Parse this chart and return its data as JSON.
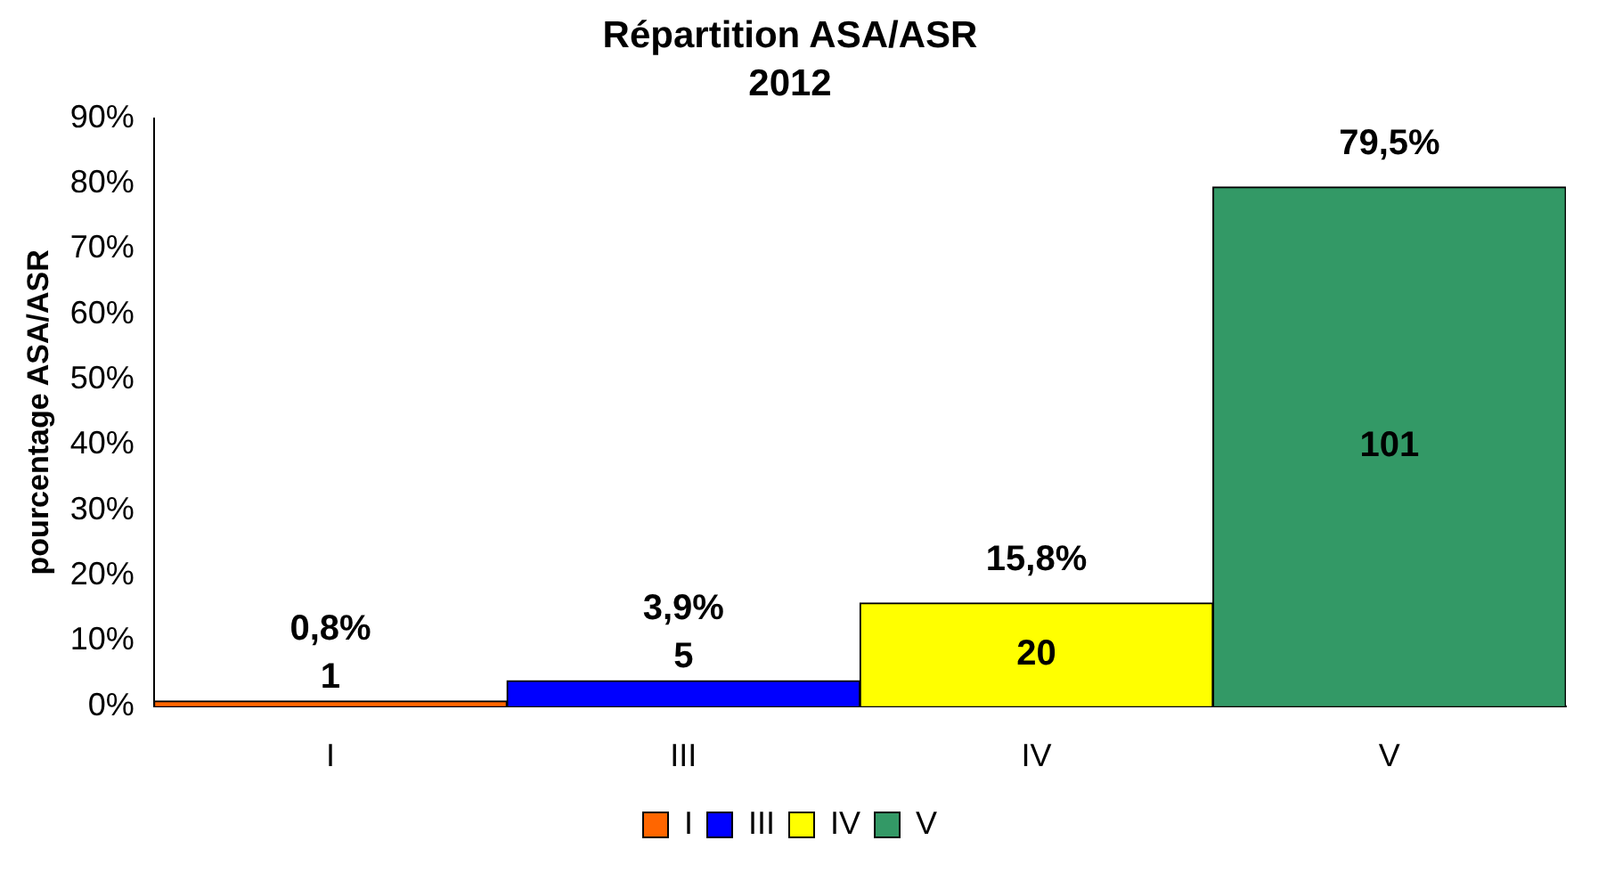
{
  "chart_data": {
    "type": "bar",
    "title": "Répartition ASA/ASR",
    "subtitle": "2012",
    "ylabel": "pourcentage ASA/ASR",
    "categories": [
      "I",
      "III",
      "IV",
      "V"
    ],
    "series": [
      {
        "name": "I",
        "color": "#ff6600",
        "values": [
          0.8,
          null,
          null,
          null
        ],
        "value_labels": [
          "0,8%",
          null,
          null,
          null
        ]
      },
      {
        "name": "III",
        "color": "#0000ff",
        "values": [
          null,
          3.9,
          null,
          null
        ],
        "value_labels": [
          null,
          "3,9%",
          null,
          null
        ]
      },
      {
        "name": "IV",
        "color": "#ffff00",
        "values": [
          null,
          null,
          15.8,
          null
        ],
        "value_labels": [
          null,
          null,
          "15,8%",
          null
        ]
      },
      {
        "name": "V",
        "color": "#339966",
        "values": [
          null,
          null,
          null,
          79.5
        ],
        "value_labels": [
          null,
          null,
          null,
          "79,5%"
        ]
      }
    ],
    "annotations": [
      "1",
      "5",
      "20",
      "101"
    ],
    "ylim": [
      0,
      90
    ],
    "yticks": [
      {
        "value": 0,
        "label": "0%"
      },
      {
        "value": 10,
        "label": "10%"
      },
      {
        "value": 20,
        "label": "20%"
      },
      {
        "value": 30,
        "label": "30%"
      },
      {
        "value": 40,
        "label": "40%"
      },
      {
        "value": 50,
        "label": "50%"
      },
      {
        "value": 60,
        "label": "60%"
      },
      {
        "value": 70,
        "label": "70%"
      },
      {
        "value": 80,
        "label": "80%"
      },
      {
        "value": 90,
        "label": "90%"
      }
    ],
    "grid": false,
    "legend": "bottom"
  }
}
